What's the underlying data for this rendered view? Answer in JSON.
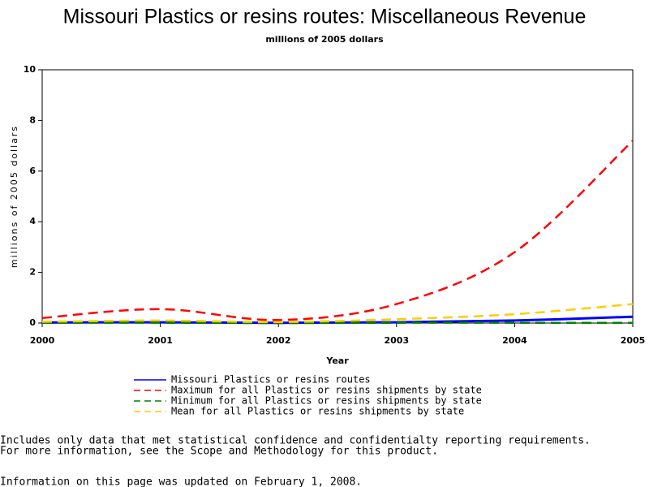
{
  "chart_data": {
    "type": "line",
    "title": "Missouri Plastics or resins routes: Miscellaneous Revenue",
    "subtitle": "millions of 2005 dollars",
    "x_label": "Year",
    "y_label": "millions of 2005 dollars",
    "x": [
      2000,
      2001,
      2002,
      2003,
      2004,
      2005
    ],
    "xlim": [
      2000,
      2005
    ],
    "xticks": [
      2000,
      2001,
      2002,
      2003,
      2004,
      2005
    ],
    "ylim": [
      0,
      10
    ],
    "yticks": [
      0,
      2,
      4,
      6,
      8,
      10
    ],
    "series": [
      {
        "name": "Missouri Plastics or resins routes",
        "color": "#0000ff",
        "dashed": false,
        "values": [
          0.02,
          0.03,
          0.01,
          0.03,
          0.1,
          0.25
        ]
      },
      {
        "name": "Maximum for all Plastics or resins shipments by state",
        "color": "#ff0000",
        "dashed": true,
        "values": [
          0.2,
          0.55,
          0.12,
          0.75,
          2.8,
          7.2
        ]
      },
      {
        "name": "Minimum for all Plastics or resins shipments by state",
        "color": "#008000",
        "dashed": true,
        "values": [
          0.01,
          0.01,
          0.0,
          0.01,
          0.01,
          0.01
        ]
      },
      {
        "name": "Mean for all Plastics or resins shipments by state",
        "color": "#ffcc00",
        "dashed": true,
        "values": [
          0.05,
          0.1,
          0.04,
          0.15,
          0.35,
          0.75
        ]
      }
    ],
    "notes": [
      "Includes only data that met statistical confidence and confidentialty reporting requirements.",
      "For more information, see the Scope and Methodology for this product.",
      "Information on this page was updated on February 1, 2008."
    ]
  }
}
